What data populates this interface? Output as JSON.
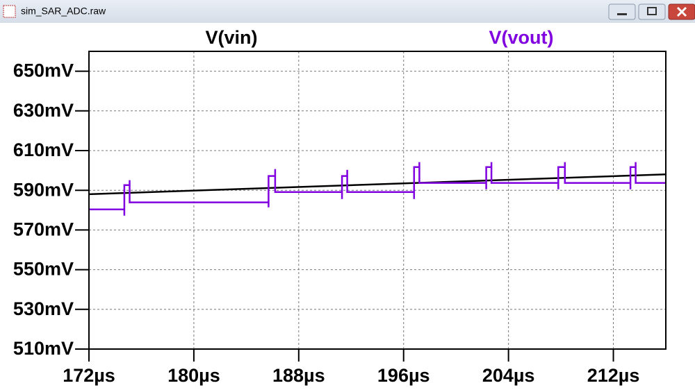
{
  "window_title": "sim_SAR_ADC.raw",
  "chart_data": {
    "type": "line",
    "series": [
      {
        "name": "V(vin)",
        "color": "#000000",
        "x": [
          172,
          216
        ],
        "values": [
          588,
          598
        ]
      },
      {
        "name": "V(vout)",
        "color": "#8000e0",
        "x": [
          172,
          174.7,
          174.7,
          174.7,
          175.1,
          175.1,
          175.1,
          185.7,
          185.7,
          185.7,
          186.2,
          186.2,
          186.2,
          191.3,
          191.3,
          191.3,
          191.7,
          191.7,
          191.7,
          196.8,
          196.8,
          196.8,
          197.2,
          197.2,
          197.2,
          202.3,
          202.3,
          202.3,
          202.7,
          202.7,
          202.7,
          207.8,
          207.8,
          207.8,
          208.3,
          208.3,
          208.3,
          213.3,
          213.3,
          213.3,
          213.7,
          213.7,
          213.7,
          216
        ],
        "values": [
          580.4,
          580.4,
          577.2,
          592.6,
          592.6,
          595.1,
          583.9,
          583.9,
          581.4,
          597.2,
          597.2,
          600.7,
          589.1,
          589.1,
          585.6,
          597.2,
          597.2,
          600.3,
          589.1,
          589.1,
          585.6,
          601.7,
          601.7,
          604.2,
          593.7,
          593.7,
          590.5,
          601.7,
          601.7,
          604.2,
          593.7,
          593.7,
          590.5,
          601.7,
          601.7,
          604.2,
          593.7,
          593.7,
          590.5,
          601.7,
          601.7,
          604.2,
          593.7,
          593.7
        ]
      }
    ],
    "xlim": [
      172,
      216
    ],
    "xticks": [
      {
        "value": 172,
        "label": "172µs"
      },
      {
        "value": 180,
        "label": "180µs"
      },
      {
        "value": 188,
        "label": "188µs"
      },
      {
        "value": 196,
        "label": "196µs"
      },
      {
        "value": 204,
        "label": "204µs"
      },
      {
        "value": 212,
        "label": "212µs"
      }
    ],
    "ylim": [
      510,
      660
    ],
    "yticks": [
      {
        "value": 510,
        "label": "510mV"
      },
      {
        "value": 530,
        "label": "530mV"
      },
      {
        "value": 550,
        "label": "550mV"
      },
      {
        "value": 570,
        "label": "570mV"
      },
      {
        "value": 590,
        "label": "590mV"
      },
      {
        "value": 610,
        "label": "610mV"
      },
      {
        "value": 630,
        "label": "630mV"
      },
      {
        "value": 650,
        "label": "650mV"
      }
    ],
    "grid": true
  }
}
